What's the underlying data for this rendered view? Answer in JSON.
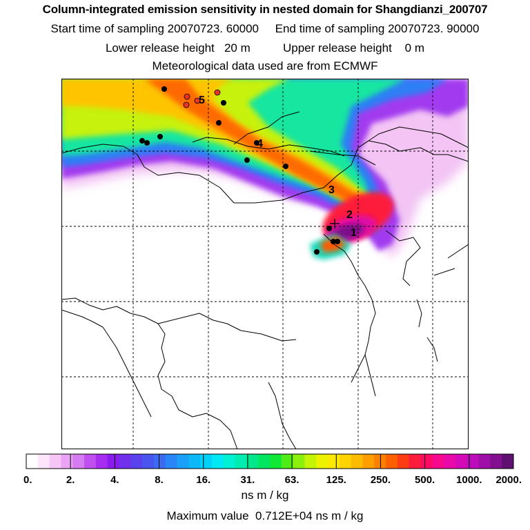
{
  "header": {
    "title": "Column-integrated emission sensitivity in nested domain for Shangdianzi_200707",
    "sampling": "Start time of sampling 20070723. 60000     End time of sampling 20070723. 90000",
    "release": "Lower release height   20 m          Upper release height    0 m",
    "met": "Meteorological data used are from ECMWF"
  },
  "colorbar": {
    "labels": [
      "0.",
      "2.",
      "4.",
      "8.",
      "16.",
      "31.",
      "63.",
      "125.",
      "250.",
      "500.",
      "1000.",
      "2000."
    ],
    "unit": "ns m / kg",
    "colors": [
      "#ffffff",
      "#fde6fb",
      "#f6c6f7",
      "#eba3f5",
      "#d77bf2",
      "#c04ff0",
      "#a62cf0",
      "#8b1bee",
      "#7030ee",
      "#5a42ee",
      "#4a55f0",
      "#3a6cf2",
      "#2a86f6",
      "#1aa0f8",
      "#0cb8fa",
      "#00d2fb",
      "#00e8f3",
      "#00f0d4",
      "#00ecb0",
      "#00e88a",
      "#00e660",
      "#10e838",
      "#50ec18",
      "#8cf00c",
      "#c4f406",
      "#ecf200",
      "#fce800",
      "#fed400",
      "#febc00",
      "#fe9e00",
      "#fe8000",
      "#fe6000",
      "#fe3c14",
      "#fe1c3c",
      "#fe0a64",
      "#f8088c",
      "#e809a8",
      "#d40ab8",
      "#bc0cbc",
      "#a00ea8",
      "#82108e",
      "#601070"
    ]
  },
  "max_value": "Maximum value  0.712E+04 ns m / kg",
  "map": {
    "label_colors": {
      "receptor_dots": "#000000",
      "source_dots": "#e8332b"
    },
    "trajectory_labels": [
      "1",
      "2",
      "3",
      "4",
      "5"
    ]
  }
}
